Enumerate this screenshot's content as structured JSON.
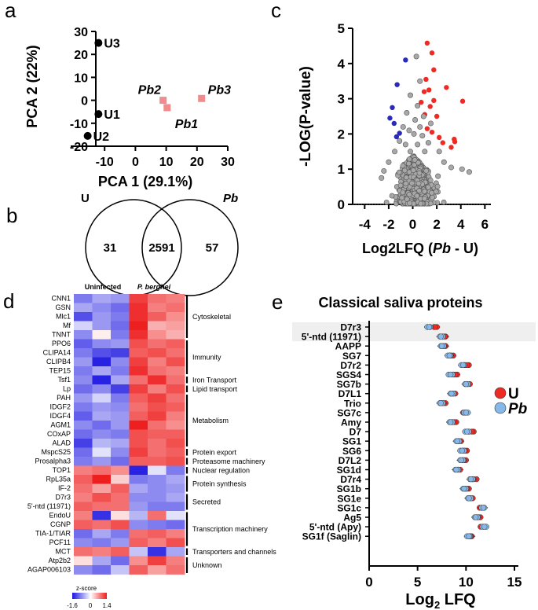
{
  "panel_labels": {
    "a": "a",
    "b": "b",
    "c": "c",
    "d": "d",
    "e": "e"
  },
  "chart_data": [
    {
      "panel": "a",
      "type": "scatter",
      "xlabel": "PCA 1 (29.1%)",
      "ylabel": "PCA 2 (22%)",
      "xlim": [
        -20,
        30
      ],
      "ylim": [
        -20,
        30
      ],
      "xticks": [
        "-10",
        "0",
        "10",
        "20",
        "30"
      ],
      "yticks": [
        "30",
        "20",
        "10",
        "0",
        "-10",
        "-20"
      ],
      "series": [
        {
          "name": "Uninfected",
          "color": "#000000",
          "marker": "circle",
          "points": [
            {
              "label": "U3",
              "x": -12,
              "y": 25
            },
            {
              "label": "U1",
              "x": -12,
              "y": -6
            },
            {
              "label": "U2",
              "x": -15.5,
              "y": -15.5
            }
          ]
        },
        {
          "name": "Pb",
          "color": "#f08c8c",
          "marker": "square",
          "points": [
            {
              "label": "Pb2",
              "x": 9,
              "y": 0
            },
            {
              "label": "Pb1",
              "x": 10.3,
              "y": -3.2
            },
            {
              "label": "Pb3",
              "x": 21.5,
              "y": 0.8
            }
          ]
        }
      ]
    },
    {
      "panel": "b",
      "type": "venn",
      "sets": [
        "U",
        "Pb"
      ],
      "values": {
        "only_U": "31",
        "both": "2591",
        "only_Pb": "57"
      }
    },
    {
      "panel": "c",
      "type": "scatter",
      "xlabel_parts": [
        "Log2LFQ (",
        "Pb",
        " - U)"
      ],
      "ylabel": "-LOG(P-value)",
      "xlim": [
        -5,
        6.5
      ],
      "ylim": [
        0,
        5
      ],
      "xticks": [
        "-4",
        "-2",
        "0",
        "2",
        "4",
        "6"
      ],
      "yticks": [
        "0",
        "1",
        "2",
        "3",
        "4",
        "5"
      ],
      "significance_line": 0,
      "colors": {
        "up": "#ee2a24",
        "down": "#2b2ab8",
        "ns": "#a8a8a8"
      },
      "series": [
        {
          "name": "up",
          "points": [
            [
              1.2,
              4.58
            ],
            [
              1.6,
              4.3
            ],
            [
              1.75,
              3.82
            ],
            [
              1.1,
              3.55
            ],
            [
              1.35,
              3.25
            ],
            [
              0.95,
              3.2
            ],
            [
              2.8,
              3.32
            ],
            [
              4.15,
              2.93
            ],
            [
              1.75,
              2.95
            ],
            [
              1.45,
              2.78
            ],
            [
              0.7,
              2.9
            ],
            [
              1.0,
              2.55
            ],
            [
              1.6,
              2.05
            ],
            [
              2.2,
              1.9
            ],
            [
              3.45,
              1.85
            ],
            [
              2.5,
              1.75
            ],
            [
              3.2,
              1.62
            ],
            [
              1.2,
              2.15
            ],
            [
              2.0,
              2.5
            ],
            [
              3.5,
              1.78
            ]
          ]
        },
        {
          "name": "down",
          "points": [
            [
              -0.6,
              4.1
            ],
            [
              -1.3,
              3.4
            ],
            [
              -1.7,
              2.75
            ],
            [
              -1.55,
              2.3
            ],
            [
              -1.9,
              2.45
            ],
            [
              -1.1,
              2.02
            ],
            [
              -1.35,
              1.92
            ]
          ]
        },
        {
          "name": "ns",
          "points": [
            [
              0.3,
              4.2
            ],
            [
              0.6,
              3.5
            ],
            [
              -0.2,
              3.1
            ],
            [
              0.4,
              2.8
            ],
            [
              -0.5,
              2.6
            ],
            [
              0.9,
              2.5
            ],
            [
              0.2,
              2.4
            ],
            [
              -0.8,
              2.2
            ],
            [
              0.6,
              2.2
            ],
            [
              1.5,
              2.3
            ],
            [
              -0.3,
              2.1
            ],
            [
              0.1,
              2.0
            ],
            [
              0.8,
              1.95
            ],
            [
              -1.1,
              1.8
            ],
            [
              1.3,
              1.75
            ],
            [
              -0.6,
              1.7
            ],
            [
              0.4,
              1.7
            ],
            [
              2.2,
              1.5
            ],
            [
              -1.5,
              1.5
            ],
            [
              -0.2,
              1.5
            ],
            [
              1.0,
              1.5
            ],
            [
              4.1,
              1.0
            ],
            [
              4.7,
              0.92
            ],
            [
              3.2,
              1.05
            ],
            [
              2.6,
              1.2
            ],
            [
              -2.0,
              1.2
            ],
            [
              -2.4,
              0.95
            ],
            [
              -2.6,
              0.75
            ],
            [
              2.1,
              0.8
            ]
          ]
        }
      ]
    },
    {
      "panel": "d",
      "type": "heatmap",
      "column_groups": [
        "Uninfected",
        "P. berghei"
      ],
      "n_cols": 6,
      "colorscale": {
        "label": "z-score",
        "min": "-1.6",
        "mid": "0",
        "max": "1.4"
      },
      "rows": [
        "CNN1",
        "GSN",
        "Mlc1",
        "Mf",
        "TNNT",
        "PPO6",
        "CLIPA14",
        "CLIPB4",
        "TEP15",
        "Tsf1",
        "Lp",
        "PAH",
        "IDGF2",
        "IDGF4",
        "AGM1",
        "COxAP",
        "ALAD",
        "MspcS25",
        "Prosalpha3",
        "TOP1",
        "RpL35a",
        "IF-2",
        "D7r3",
        "5'-ntd (11971)",
        "EndoU",
        "CGNP",
        "TIA-1/TIAR",
        "PCF11",
        "MCT",
        "Atp2b2",
        "AGAP006103"
      ],
      "values": [
        [
          -0.9,
          -0.6,
          -0.7,
          1.2,
          0.9,
          0.8
        ],
        [
          -0.6,
          -0.8,
          -1.0,
          1.3,
          0.8,
          0.9
        ],
        [
          -1.2,
          -0.7,
          -0.9,
          1.3,
          1.0,
          0.7
        ],
        [
          -0.3,
          -0.7,
          -1.0,
          1.4,
          0.5,
          0.6
        ],
        [
          -0.8,
          0.1,
          -0.9,
          1.3,
          0.7,
          0.5
        ],
        [
          -1.1,
          -0.8,
          -0.7,
          1.1,
          0.9,
          1.0
        ],
        [
          -0.9,
          -1.2,
          -1.3,
          1.0,
          1.1,
          0.9
        ],
        [
          -0.7,
          -1.5,
          -0.8,
          1.2,
          0.8,
          1.1
        ],
        [
          -0.9,
          -0.6,
          -0.9,
          1.3,
          0.9,
          0.8
        ],
        [
          -0.8,
          -1.5,
          -0.6,
          0.9,
          1.3,
          0.9
        ],
        [
          -1.0,
          -0.8,
          -1.3,
          1.2,
          0.8,
          1.1
        ],
        [
          -0.7,
          -0.3,
          -0.9,
          1.0,
          1.2,
          0.9
        ],
        [
          -0.9,
          -0.7,
          -0.8,
          0.9,
          1.1,
          1.0
        ],
        [
          -1.1,
          -0.6,
          -0.7,
          1.0,
          1.2,
          0.8
        ],
        [
          -0.8,
          -1.0,
          -0.7,
          1.4,
          0.9,
          0.7
        ],
        [
          -1.0,
          -0.8,
          -0.9,
          1.1,
          1.0,
          1.0
        ],
        [
          -1.3,
          -0.5,
          -0.6,
          1.1,
          0.9,
          1.1
        ],
        [
          -1.0,
          -0.2,
          -0.8,
          1.2,
          0.9,
          1.0
        ],
        [
          -0.9,
          -0.7,
          -1.0,
          1.0,
          1.0,
          1.1
        ],
        [
          0.8,
          0.9,
          0.7,
          -1.5,
          -0.2,
          -0.9
        ],
        [
          1.0,
          1.4,
          0.3,
          -0.9,
          -0.8,
          -0.6
        ],
        [
          0.9,
          0.6,
          1.0,
          -0.6,
          -0.8,
          -0.7
        ],
        [
          0.8,
          1.1,
          0.9,
          -0.8,
          -0.8,
          -0.6
        ],
        [
          1.0,
          0.9,
          0.9,
          -0.7,
          -0.9,
          -0.9
        ],
        [
          0.8,
          -1.4,
          0.2,
          -0.5,
          0.9,
          -0.2
        ],
        [
          1.0,
          0.9,
          1.1,
          -0.8,
          -0.9,
          -1.0
        ],
        [
          -1.0,
          -0.6,
          -0.9,
          0.9,
          1.0,
          0.8
        ],
        [
          -0.8,
          -0.9,
          -0.7,
          1.0,
          0.8,
          1.1
        ],
        [
          0.9,
          0.8,
          1.0,
          -0.4,
          -1.4,
          -0.6
        ],
        [
          0.2,
          -0.6,
          -1.0,
          0.7,
          1.2,
          0.8
        ],
        [
          -0.8,
          -1.0,
          -0.4,
          1.0,
          0.6,
          0.9
        ]
      ],
      "categories": [
        {
          "label": "Cytoskeletal",
          "start": 0,
          "end": 4
        },
        {
          "label": "Immunity",
          "start": 5,
          "end": 8
        },
        {
          "label": "Iron Transport",
          "start": 9,
          "end": 9
        },
        {
          "label": "Lipid transport",
          "start": 10,
          "end": 10
        },
        {
          "label": "Metabolism",
          "start": 11,
          "end": 16
        },
        {
          "label": "Protein export",
          "start": 17,
          "end": 17
        },
        {
          "label": "Proteasome machinery",
          "start": 18,
          "end": 18
        },
        {
          "label": "Nuclear regulation",
          "start": 19,
          "end": 19
        },
        {
          "label": "Protein synthesis",
          "start": 20,
          "end": 21
        },
        {
          "label": "Secreted",
          "start": 22,
          "end": 23
        },
        {
          "label": "Transcription machinery",
          "start": 24,
          "end": 27
        },
        {
          "label": "Transporters and channels",
          "start": 28,
          "end": 28
        },
        {
          "label": "Unknown",
          "start": 29,
          "end": 30
        }
      ]
    },
    {
      "panel": "e",
      "type": "dot",
      "title": "Classical saliva proteins",
      "xlabel": "Log",
      "xlabel_sub": "2",
      "xlabel_suffix": " LFQ",
      "xlim": [
        0,
        15
      ],
      "xticks": [
        "0",
        "5",
        "10",
        "15"
      ],
      "highlight_rows": [
        0,
        1
      ],
      "legend": [
        {
          "label": "U",
          "color": "#ee2a24"
        },
        {
          "label": "Pb",
          "color": "#86b9ea"
        }
      ],
      "categories": [
        "D7r3",
        "5'-ntd (11971)",
        "AAPP",
        "SG7",
        "D7r2",
        "SGS4",
        "SG7b",
        "D7L1",
        "Trio",
        "SG7c",
        "Amy",
        "D7",
        "SG1",
        "SG6",
        "D7L2",
        "SG1d",
        "D7r4",
        "SG1b",
        "SG1e",
        "SG1c",
        "Ag5",
        "5'-ntd (Apy)",
        "SG1f (Saglin)"
      ],
      "series": [
        {
          "name": "U",
          "values": [
            [
              6.7,
              7.0,
              6.8
            ],
            [
              7.6,
              7.9,
              7.8
            ],
            [
              7.6,
              7.9,
              7.8
            ],
            [
              8.3,
              8.7,
              8.5
            ],
            [
              9.9,
              10.3,
              10.1
            ],
            [
              8.7,
              9.1,
              8.9
            ],
            [
              10.0,
              10.4,
              10.2
            ],
            [
              8.5,
              8.9,
              8.7
            ],
            [
              7.5,
              7.9,
              7.7
            ],
            [
              9.7,
              10.0,
              9.9
            ],
            [
              8.6,
              9.0,
              8.8
            ],
            [
              10.3,
              10.8,
              10.6
            ],
            [
              9.2,
              9.5,
              9.3
            ],
            [
              9.7,
              10.1,
              9.9
            ],
            [
              9.6,
              10.0,
              9.8
            ],
            [
              9.1,
              9.4,
              9.2
            ],
            [
              10.6,
              11.1,
              10.8
            ],
            [
              9.9,
              10.3,
              10.1
            ],
            [
              10.3,
              10.7,
              10.5
            ],
            [
              11.4,
              11.8,
              11.6
            ],
            [
              11.1,
              11.5,
              11.3
            ],
            [
              11.5,
              12.0,
              11.8
            ],
            [
              10.3,
              10.6,
              10.5
            ]
          ]
        },
        {
          "name": "Pb",
          "values": [
            [
              6.0,
              6.3,
              6.2
            ],
            [
              7.3,
              7.6,
              7.4
            ],
            [
              7.4,
              7.7,
              7.5
            ],
            [
              8.1,
              8.4,
              8.3
            ],
            [
              9.5,
              9.8,
              9.7
            ],
            [
              8.2,
              8.6,
              8.4
            ],
            [
              9.9,
              10.2,
              10.0
            ],
            [
              8.4,
              8.7,
              8.5
            ],
            [
              7.3,
              7.6,
              7.4
            ],
            [
              9.8,
              10.2,
              10.0
            ],
            [
              8.3,
              8.6,
              8.4
            ],
            [
              9.9,
              10.3,
              10.1
            ],
            [
              9.0,
              9.3,
              9.1
            ],
            [
              9.4,
              9.8,
              9.6
            ],
            [
              9.4,
              9.7,
              9.5
            ],
            [
              8.9,
              9.2,
              9.0
            ],
            [
              10.4,
              10.7,
              10.5
            ],
            [
              9.7,
              10.0,
              9.8
            ],
            [
              10.2,
              10.5,
              10.3
            ],
            [
              11.6,
              11.9,
              11.8
            ],
            [
              10.9,
              11.2,
              11.0
            ],
            [
              11.7,
              12.1,
              11.9
            ],
            [
              10.1,
              10.4,
              10.3
            ]
          ]
        }
      ]
    }
  ]
}
